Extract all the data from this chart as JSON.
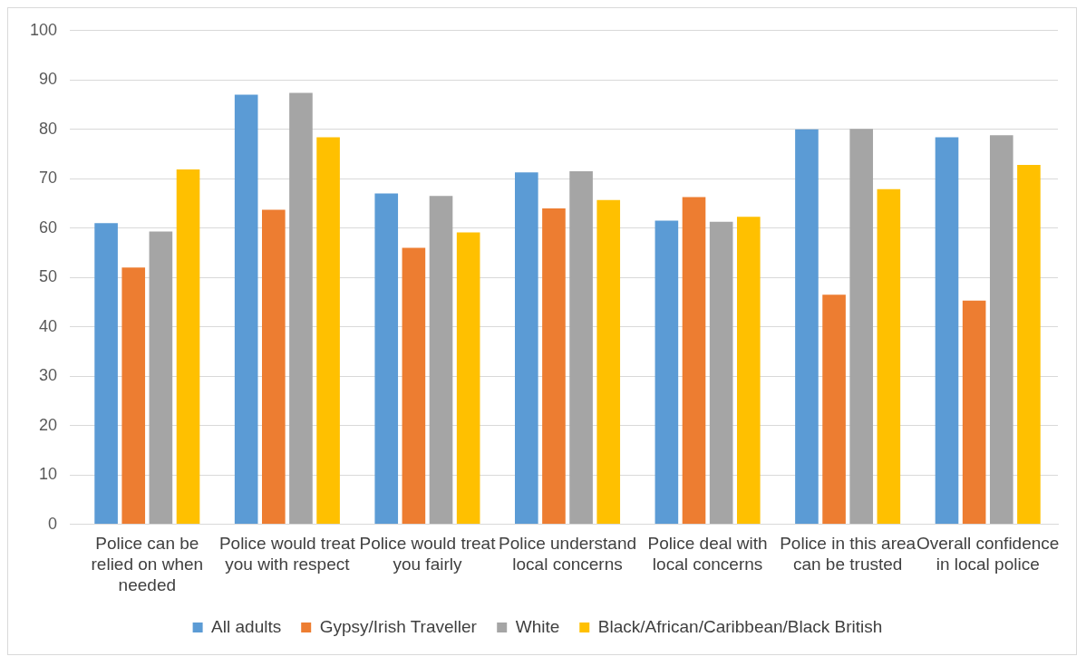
{
  "chart_data": {
    "type": "bar",
    "categories": [
      "Police can be relied on when needed",
      "Police would treat you with respect",
      "Police would treat you fairly",
      "Police understand local concerns",
      "Police deal with local concerns",
      "Police in this area can be trusted",
      "Overall confidence in local police"
    ],
    "series": [
      {
        "name": "All adults",
        "color": "#5b9bd5",
        "values": [
          61,
          87,
          67,
          71.3,
          61.5,
          80,
          78.4
        ]
      },
      {
        "name": "Gypsy/Irish Traveller",
        "color": "#ed7d31",
        "values": [
          52,
          63.7,
          56,
          64,
          66.3,
          46.5,
          45.3
        ]
      },
      {
        "name": "White",
        "color": "#a5a5a5",
        "values": [
          59.3,
          87.4,
          66.5,
          71.5,
          61.3,
          80.1,
          78.8
        ]
      },
      {
        "name": "Black/African/Caribbean/Black British",
        "color": "#ffc000",
        "values": [
          71.9,
          78.4,
          59.1,
          65.7,
          62.3,
          67.9,
          72.8
        ]
      }
    ],
    "ylim": [
      0,
      100
    ],
    "yticks": [
      0,
      10,
      20,
      30,
      40,
      50,
      60,
      70,
      80,
      90,
      100
    ],
    "grid": "y",
    "legend": "bottom"
  }
}
